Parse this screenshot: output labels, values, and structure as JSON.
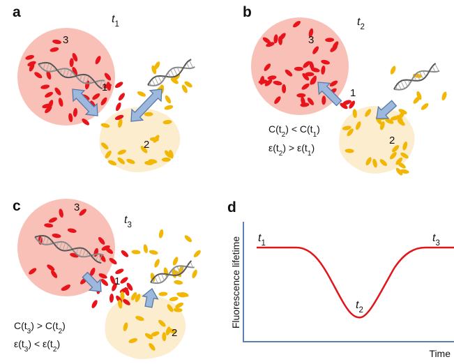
{
  "panels": [
    {
      "label": "a",
      "time": [
        "t",
        "1"
      ],
      "regions": [
        "1",
        "2",
        "3"
      ]
    },
    {
      "label": "b",
      "time": [
        "t",
        "2"
      ],
      "regions": [
        "1",
        "2",
        "3"
      ],
      "conditions": [
        [
          "C(t",
          "2",
          ") < C(t",
          "1",
          ")"
        ],
        [
          "ε(t",
          "2",
          ") > ε(t",
          "1",
          ")"
        ]
      ]
    },
    {
      "label": "c",
      "time": [
        "t",
        "3"
      ],
      "regions": [
        "1",
        "2",
        "3"
      ],
      "conditions": [
        [
          "C(t",
          "3",
          ") > C(t",
          "2",
          ")"
        ],
        [
          "ε(t",
          "3",
          ") < ε(t",
          "2",
          ")"
        ]
      ]
    },
    {
      "label": "d",
      "time_labels": [
        [
          "t",
          "1"
        ],
        [
          "t",
          "2"
        ],
        [
          "t",
          "3"
        ]
      ],
      "y_axis_label": "Fluorescence lifetime",
      "x_axis_label": "Time"
    }
  ]
}
